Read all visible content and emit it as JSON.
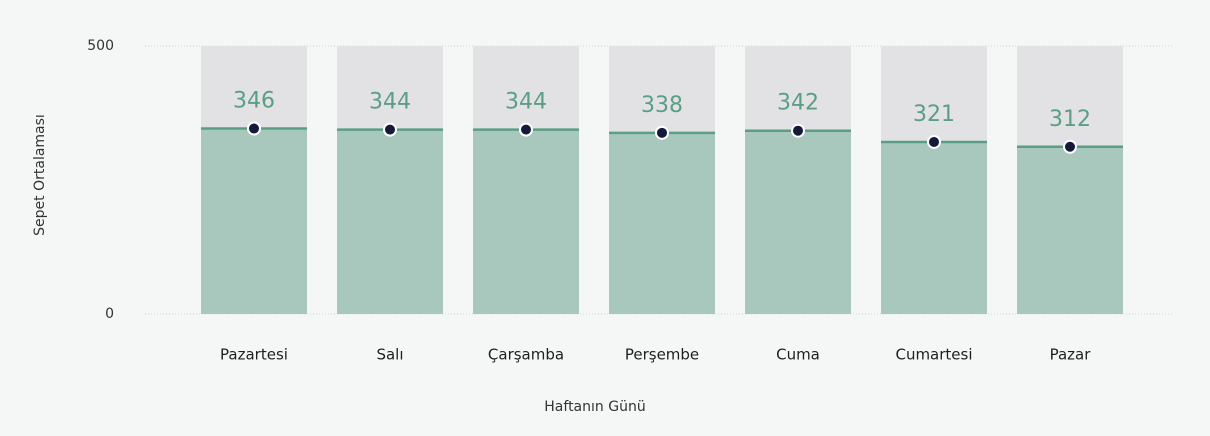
{
  "chart_data": {
    "type": "bar",
    "y_label": "Sepet Ortalaması",
    "x_label": "Haftanın Günü",
    "categories": [
      "Pazartesi",
      "Salı",
      "Çarşamba",
      "Perşembe",
      "Cuma",
      "Cumartesi",
      "Pazar"
    ],
    "values": [
      346,
      344,
      344,
      338,
      342,
      321,
      312
    ],
    "color": "#a8c7bd",
    "line_color": "#5a9e85",
    "ylim": [
      0,
      500
    ],
    "yticks": [
      0,
      500
    ],
    "grid": true
  }
}
